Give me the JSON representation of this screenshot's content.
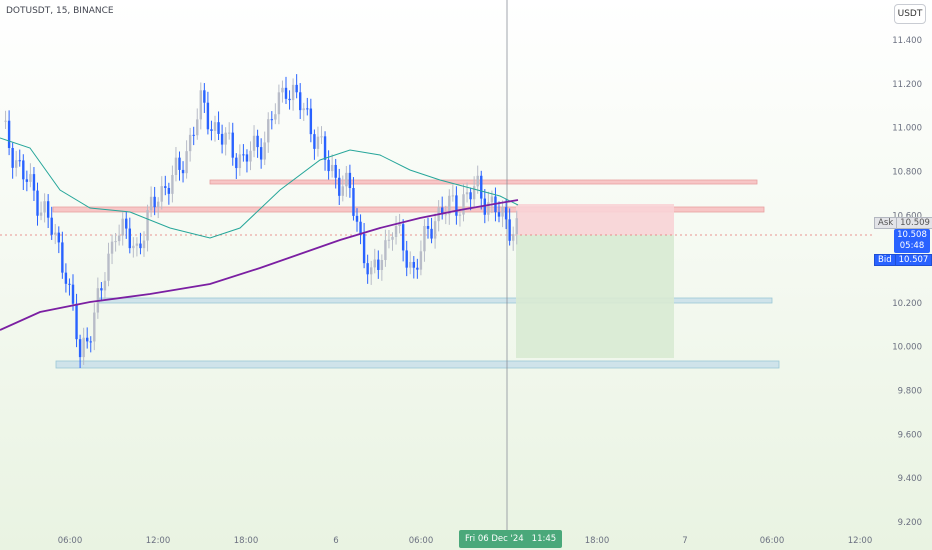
{
  "header": {
    "symbol_info": "DOTUSDT, 15, BINANCE",
    "currency": "USDT"
  },
  "price_axis": {
    "ticks": [
      "11.400",
      "11.200",
      "11.000",
      "10.800",
      "10.600",
      "10.200",
      "10.000",
      "9.800",
      "9.600",
      "9.400",
      "9.200"
    ]
  },
  "time_axis": {
    "ticks": [
      "06:00",
      "12:00",
      "18:00",
      "6",
      "06:00",
      "18:00",
      "7",
      "06:00",
      "12:00"
    ]
  },
  "price_labels": {
    "ask_label": "Ask",
    "ask_value": "10.509",
    "last_value": "10.508",
    "countdown": "05:48",
    "bid_label": "Bid",
    "bid_value": "10.507"
  },
  "crosshair": {
    "date": "Fri 06 Dec '24",
    "time": "11:45"
  },
  "colors": {
    "background": "#eef5e8",
    "candle_up": "#b8bcc8",
    "candle_down": "#2962ff",
    "ma_fast": "#26a69a",
    "ma_slow": "#7b1fa2",
    "resistance_zone": "#f7c6c6",
    "support_zone": "#cfe3ea",
    "stop_zone": "#f8d3d6",
    "target_zone": "#d8ead3",
    "crosshair_badge": "#4aa87a"
  }
}
